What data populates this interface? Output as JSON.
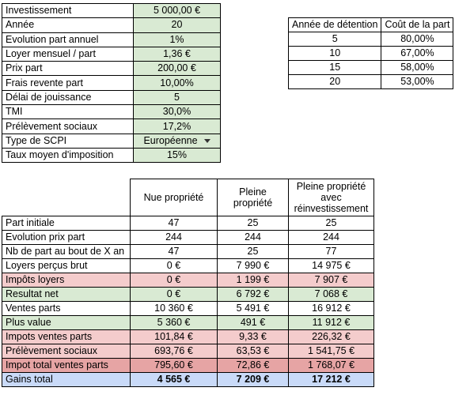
{
  "params": [
    {
      "label": "Investissement",
      "value": "5 000,00 €"
    },
    {
      "label": "Année",
      "value": "20"
    },
    {
      "label": "Evolution part annuel",
      "value": "1%"
    },
    {
      "label": "Loyer mensuel / part",
      "value": "1,36 €"
    },
    {
      "label": "Prix part",
      "value": "200,00 €"
    },
    {
      "label": "Frais revente part",
      "value": "10,00%"
    },
    {
      "label": "Délai de jouissance",
      "value": "5"
    },
    {
      "label": "TMI",
      "value": "30,0%"
    },
    {
      "label": "Prélèvement sociaux",
      "value": "17,2%"
    },
    {
      "label": "Type de SCPI",
      "value": "Européenne"
    },
    {
      "label": "Taux moyen d'imposition",
      "value": "15%"
    }
  ],
  "holding": {
    "headers": [
      "Année de détention",
      "Coût de la part"
    ],
    "rows": [
      [
        "5",
        "80,00%"
      ],
      [
        "10",
        "67,00%"
      ],
      [
        "15",
        "58,00%"
      ],
      [
        "20",
        "53,00%"
      ]
    ]
  },
  "results": {
    "headers": [
      "Nue propriété",
      "Pleine propriété",
      "Pleine propriété avec réinvestissement"
    ],
    "rows": [
      {
        "label": "Part initiale",
        "values": [
          "47",
          "25",
          "25"
        ],
        "style": ""
      },
      {
        "label": "Evolution prix part",
        "values": [
          "244",
          "244",
          "244"
        ],
        "style": ""
      },
      {
        "label": "Nb de part au bout de X an",
        "values": [
          "47",
          "25",
          "77"
        ],
        "style": ""
      },
      {
        "label": "Loyers perçus brut",
        "values": [
          "0 €",
          "7 990 €",
          "14 975 €"
        ],
        "style": ""
      },
      {
        "label": "Impôts loyers",
        "values": [
          "0 €",
          "1 199 €",
          "7 907 €"
        ],
        "style": "pink"
      },
      {
        "label": "Resultat net",
        "values": [
          "0 €",
          "6 792 €",
          "7 068 €"
        ],
        "style": "green"
      },
      {
        "label": "Ventes parts",
        "values": [
          "10 360 €",
          "5 491 €",
          "16 912 €"
        ],
        "style": ""
      },
      {
        "label": "Plus value",
        "values": [
          "5 360 €",
          "491 €",
          "11 912 €"
        ],
        "style": "green"
      },
      {
        "label": "Impots ventes parts",
        "values": [
          "101,84 €",
          "9,33 €",
          "226,32 €"
        ],
        "style": "pink"
      },
      {
        "label": "Prélèvement sociaux",
        "values": [
          "693,76 €",
          "63,53 €",
          "1 541,75 €"
        ],
        "style": "pink"
      },
      {
        "label": "Impot total ventes parts",
        "values": [
          "795,60 €",
          "72,86 €",
          "1 768,07 €"
        ],
        "style": "red"
      },
      {
        "label": "Gains total",
        "values": [
          "4 565 €",
          "7 209 €",
          "17 212 €"
        ],
        "style": "blue"
      }
    ]
  }
}
